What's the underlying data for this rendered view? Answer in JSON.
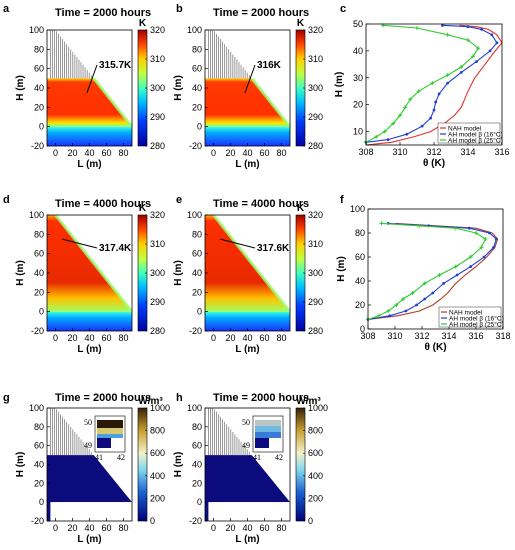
{
  "chart_data": [
    {
      "id": "a",
      "letter": "a",
      "type": "heatmap",
      "title": "Time = 2000 hours",
      "xlabel": "L (m)",
      "ylabel": "H (m)",
      "xlim": [
        -10,
        90
      ],
      "ylim": [
        -20,
        100
      ],
      "xticks": [
        0,
        20,
        40,
        60,
        80
      ],
      "yticks": [
        -20,
        0,
        20,
        40,
        60,
        80,
        100
      ],
      "fill_top": 50,
      "scaffold_top": 100,
      "annotation": "315.7K",
      "colorbar": {
        "unit": "K",
        "min": 280,
        "max": 320,
        "ticks": [
          280,
          290,
          300,
          310,
          320
        ],
        "scheme": "thermal"
      }
    },
    {
      "id": "b",
      "letter": "b",
      "type": "heatmap",
      "title": "Time = 2000 hours",
      "xlabel": "L (m)",
      "ylabel": "H (m)",
      "xlim": [
        -10,
        90
      ],
      "ylim": [
        -20,
        100
      ],
      "xticks": [
        0,
        20,
        40,
        60,
        80
      ],
      "yticks": [
        -20,
        0,
        20,
        40,
        60,
        80,
        100
      ],
      "fill_top": 50,
      "scaffold_top": 100,
      "annotation": "316K",
      "colorbar": {
        "unit": "K",
        "min": 280,
        "max": 320,
        "ticks": [
          280,
          290,
          300,
          310,
          320
        ],
        "scheme": "thermal"
      }
    },
    {
      "id": "c",
      "letter": "c",
      "type": "line",
      "xlabel": "θ (K)",
      "ylabel": "H (m)",
      "xlim": [
        308,
        316
      ],
      "ylim": [
        5,
        50
      ],
      "xticks": [
        308,
        310,
        312,
        314,
        316
      ],
      "yticks": [
        10,
        20,
        30,
        40,
        50
      ],
      "legend": [
        "NAH model",
        "AH model β (16°C)",
        "AH model β (25°C)"
      ],
      "series": [
        {
          "name": "NAH model",
          "color": "#e03030",
          "marker": "none",
          "x": [
            308,
            309.5,
            310.8,
            311.8,
            312.6,
            313.2,
            313.6,
            313.8,
            314.0,
            314.4,
            315.0,
            315.6,
            316.0,
            315.7,
            315.2,
            314.5,
            313.5
          ],
          "y": [
            5,
            6,
            8,
            10,
            13,
            16,
            19,
            22,
            25,
            30,
            35,
            40,
            43,
            46,
            48,
            49,
            49.5
          ]
        },
        {
          "name": "AH model β (16°C)",
          "color": "#1f3fcf",
          "marker": "dot",
          "x": [
            308,
            309.3,
            310.4,
            311.3,
            311.8,
            312.0,
            312.1,
            312.3,
            312.8,
            313.6,
            314.5,
            315.3,
            315.7,
            315.4,
            314.8,
            314.0,
            312.5
          ],
          "y": [
            6,
            7,
            9,
            12,
            15,
            18,
            21,
            24,
            28,
            32,
            36,
            40,
            43,
            46,
            48,
            49,
            49.5
          ]
        },
        {
          "name": "AH model β (25°C)",
          "color": "#2ecc2e",
          "marker": "star",
          "x": [
            308,
            308.6,
            309.1,
            309.6,
            310.0,
            310.3,
            310.6,
            311.1,
            311.9,
            312.8,
            313.6,
            314.3,
            314.6,
            314.0,
            312.8,
            311.0,
            309.0
          ],
          "y": [
            6,
            8,
            10,
            13,
            16,
            19,
            22,
            25,
            28,
            31,
            34,
            38,
            41,
            44,
            46,
            48.5,
            49.5
          ]
        }
      ]
    },
    {
      "id": "d",
      "letter": "d",
      "type": "heatmap",
      "title": "Time = 4000 hours",
      "xlabel": "L (m)",
      "ylabel": "H (m)",
      "xlim": [
        -10,
        90
      ],
      "ylim": [
        -20,
        100
      ],
      "xticks": [
        0,
        20,
        40,
        60,
        80
      ],
      "yticks": [
        -20,
        0,
        20,
        40,
        60,
        80,
        100
      ],
      "fill_top": 100,
      "scaffold_top": 100,
      "annotation": "317.4K",
      "colorbar": {
        "unit": "K",
        "min": 280,
        "max": 320,
        "ticks": [
          280,
          290,
          300,
          310,
          320
        ],
        "scheme": "thermal"
      }
    },
    {
      "id": "e",
      "letter": "e",
      "type": "heatmap",
      "title": "Time = 4000 hours",
      "xlabel": "L (m)",
      "ylabel": "H (m)",
      "xlim": [
        -10,
        90
      ],
      "ylim": [
        -20,
        100
      ],
      "xticks": [
        0,
        20,
        40,
        60,
        80
      ],
      "yticks": [
        -20,
        0,
        20,
        40,
        60,
        80,
        100
      ],
      "fill_top": 100,
      "scaffold_top": 100,
      "annotation": "317.6K",
      "colorbar": {
        "unit": "K",
        "min": 280,
        "max": 320,
        "ticks": [
          280,
          290,
          300,
          310,
          320
        ],
        "scheme": "thermal"
      }
    },
    {
      "id": "f",
      "letter": "f",
      "type": "line",
      "xlabel": "θ (K)",
      "ylabel": "H (m)",
      "xlim": [
        308,
        318
      ],
      "ylim": [
        0,
        100
      ],
      "xticks": [
        308,
        310,
        312,
        314,
        316,
        318
      ],
      "yticks": [
        0,
        20,
        40,
        60,
        80,
        100
      ],
      "legend": [
        "NAH model",
        "AH model β (16°C)",
        "AH model β (25°C)"
      ],
      "series": [
        {
          "name": "NAH model",
          "color": "#b03a2e",
          "marker": "none",
          "x": [
            308,
            310.2,
            311.8,
            312.8,
            313.4,
            313.9,
            314.5,
            315.2,
            316.0,
            316.8,
            317.4,
            317.6,
            317.2,
            316.0,
            313.0,
            310.0
          ],
          "y": [
            8,
            11,
            15,
            20,
            25,
            30,
            38,
            45,
            52,
            60,
            68,
            75,
            80,
            84,
            86,
            88
          ]
        },
        {
          "name": "AH model β (16°C)",
          "color": "#1f3fcf",
          "marker": "dot",
          "x": [
            308,
            309.6,
            310.8,
            311.6,
            312.2,
            312.8,
            313.6,
            314.6,
            315.6,
            316.6,
            317.3,
            317.5,
            317.0,
            315.5,
            312.5,
            309.5
          ],
          "y": [
            8,
            11,
            15,
            20,
            25,
            30,
            38,
            45,
            52,
            60,
            68,
            75,
            80,
            84,
            86,
            88
          ]
        },
        {
          "name": "AH model β (25°C)",
          "color": "#2ecc2e",
          "marker": "star",
          "x": [
            308,
            308.8,
            309.5,
            310.1,
            310.6,
            311.3,
            312.2,
            313.3,
            314.5,
            315.6,
            316.4,
            316.7,
            316.0,
            314.5,
            311.8,
            309.0
          ],
          "y": [
            8,
            11,
            15,
            20,
            25,
            30,
            38,
            45,
            52,
            60,
            68,
            75,
            80,
            84,
            86,
            88
          ]
        }
      ]
    },
    {
      "id": "g",
      "letter": "g",
      "type": "heatmap",
      "title": "Time = 2000 hours",
      "xlabel": "L (m)",
      "ylabel": "H (m)",
      "xlim": [
        -10,
        90
      ],
      "ylim": [
        -20,
        100
      ],
      "xticks": [
        0,
        20,
        40,
        60,
        80
      ],
      "yticks": [
        -20,
        0,
        20,
        40,
        60,
        80,
        100
      ],
      "fill_top": 50,
      "scaffold_top": 100,
      "inset": {
        "yticks": [
          "50",
          "49"
        ],
        "xticks": [
          "41",
          "42"
        ]
      },
      "colorbar": {
        "unit": "W/m³",
        "min": 0,
        "max": 1000,
        "ticks": [
          0,
          200,
          400,
          600,
          800,
          1000
        ],
        "scheme": "heat"
      }
    },
    {
      "id": "h",
      "letter": "h",
      "type": "heatmap",
      "title": "Time = 2000 hours",
      "xlabel": "L (m)",
      "ylabel": "H (m)",
      "xlim": [
        -10,
        90
      ],
      "ylim": [
        -20,
        100
      ],
      "xticks": [
        0,
        20,
        40,
        60,
        80
      ],
      "yticks": [
        -20,
        0,
        20,
        40,
        60,
        80,
        100
      ],
      "fill_top": 50,
      "scaffold_top": 100,
      "inset": {
        "yticks": [
          "50",
          "49"
        ],
        "xticks": [
          "41",
          "42"
        ]
      },
      "colorbar": {
        "unit": "W/m³",
        "min": 0,
        "max": 1000,
        "ticks": [
          0,
          200,
          400,
          600,
          800,
          1000
        ],
        "scheme": "heat"
      }
    }
  ]
}
